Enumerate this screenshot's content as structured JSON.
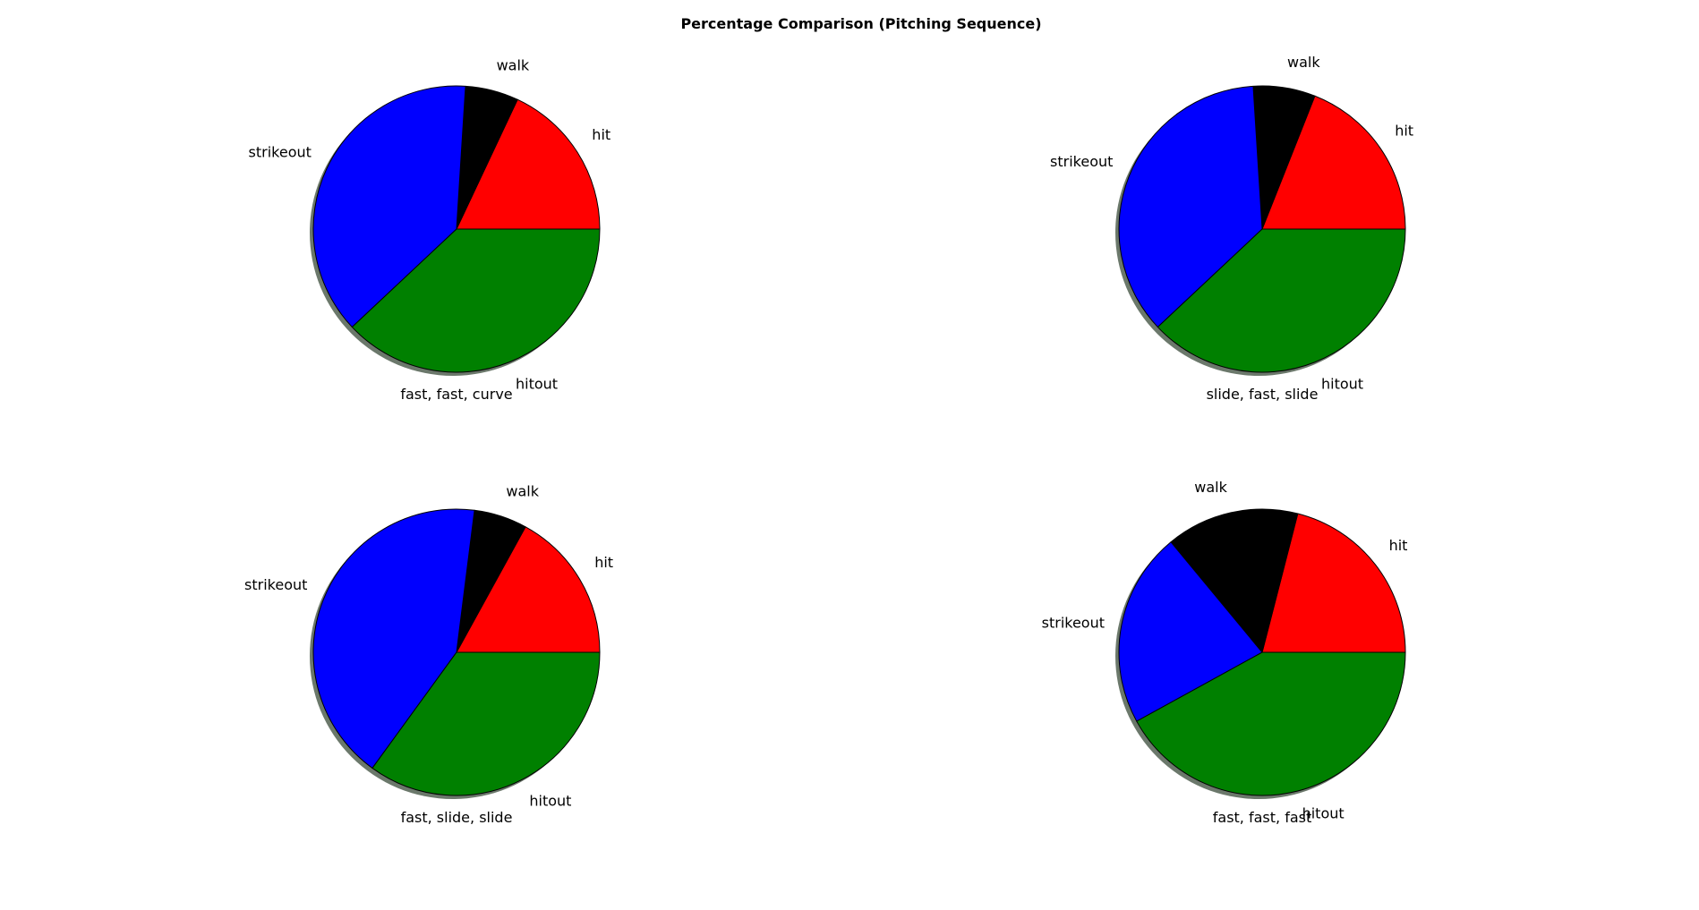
{
  "figure": {
    "title": "Percentage Comparison (Pitching Sequence)"
  },
  "chart_data": [
    {
      "type": "pie",
      "xlabel": "fast, fast, curve",
      "labels": [
        "hit",
        "walk",
        "strikeout",
        "hitout"
      ],
      "values": [
        18,
        6,
        38,
        38
      ],
      "colors": [
        "#ff0000",
        "#000000",
        "#0000ff",
        "#008000"
      ],
      "start_angle": 0,
      "direction": "counterclockwise",
      "shadow": true
    },
    {
      "type": "pie",
      "xlabel": "slide, fast, slide",
      "labels": [
        "hit",
        "walk",
        "strikeout",
        "hitout"
      ],
      "values": [
        19,
        7,
        36,
        38
      ],
      "colors": [
        "#ff0000",
        "#000000",
        "#0000ff",
        "#008000"
      ],
      "start_angle": 0,
      "direction": "counterclockwise",
      "shadow": true
    },
    {
      "type": "pie",
      "xlabel": "fast, slide, slide",
      "labels": [
        "hit",
        "walk",
        "strikeout",
        "hitout"
      ],
      "values": [
        17,
        6,
        42,
        35
      ],
      "colors": [
        "#ff0000",
        "#000000",
        "#0000ff",
        "#008000"
      ],
      "start_angle": 0,
      "direction": "counterclockwise",
      "shadow": true
    },
    {
      "type": "pie",
      "xlabel": "fast, fast, fast",
      "labels": [
        "hit",
        "walk",
        "strikeout",
        "hitout"
      ],
      "values": [
        21,
        15,
        22,
        42
      ],
      "colors": [
        "#ff0000",
        "#000000",
        "#0000ff",
        "#008000"
      ],
      "start_angle": 0,
      "direction": "counterclockwise",
      "shadow": true
    }
  ]
}
